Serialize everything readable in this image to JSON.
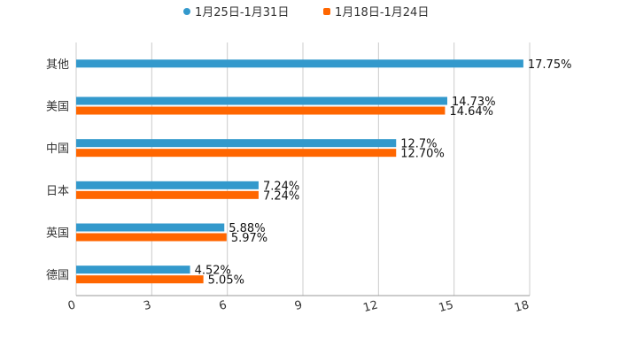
{
  "chart_data": {
    "type": "bar",
    "orientation": "horizontal",
    "categories": [
      "其他",
      "美国",
      "中国",
      "日本",
      "英国",
      "德国"
    ],
    "series": [
      {
        "name": "1月25日-1月31日",
        "color": "#3399cc",
        "values": [
          17.75,
          14.73,
          12.7,
          7.24,
          5.88,
          4.52
        ],
        "labels": [
          "17.75%",
          "14.73%",
          "12.7%",
          "7.24%",
          "5.88%",
          "4.52%"
        ]
      },
      {
        "name": "1月18日-1月24日",
        "color": "#ff6600",
        "values": [
          null,
          14.64,
          12.7,
          7.24,
          5.97,
          5.05
        ],
        "labels": [
          null,
          "14.64%",
          "12.70%",
          "7.24%",
          "5.97%",
          "5.05%"
        ]
      }
    ],
    "xlim": [
      0,
      18
    ],
    "xticks": [
      "0",
      "3",
      "6",
      "9",
      "12",
      "15",
      "18"
    ],
    "xtick_values": [
      0,
      3,
      6,
      9,
      12,
      15,
      18
    ],
    "grid": true,
    "legend_position": "top-center",
    "title": "",
    "xlabel": "",
    "ylabel": ""
  }
}
